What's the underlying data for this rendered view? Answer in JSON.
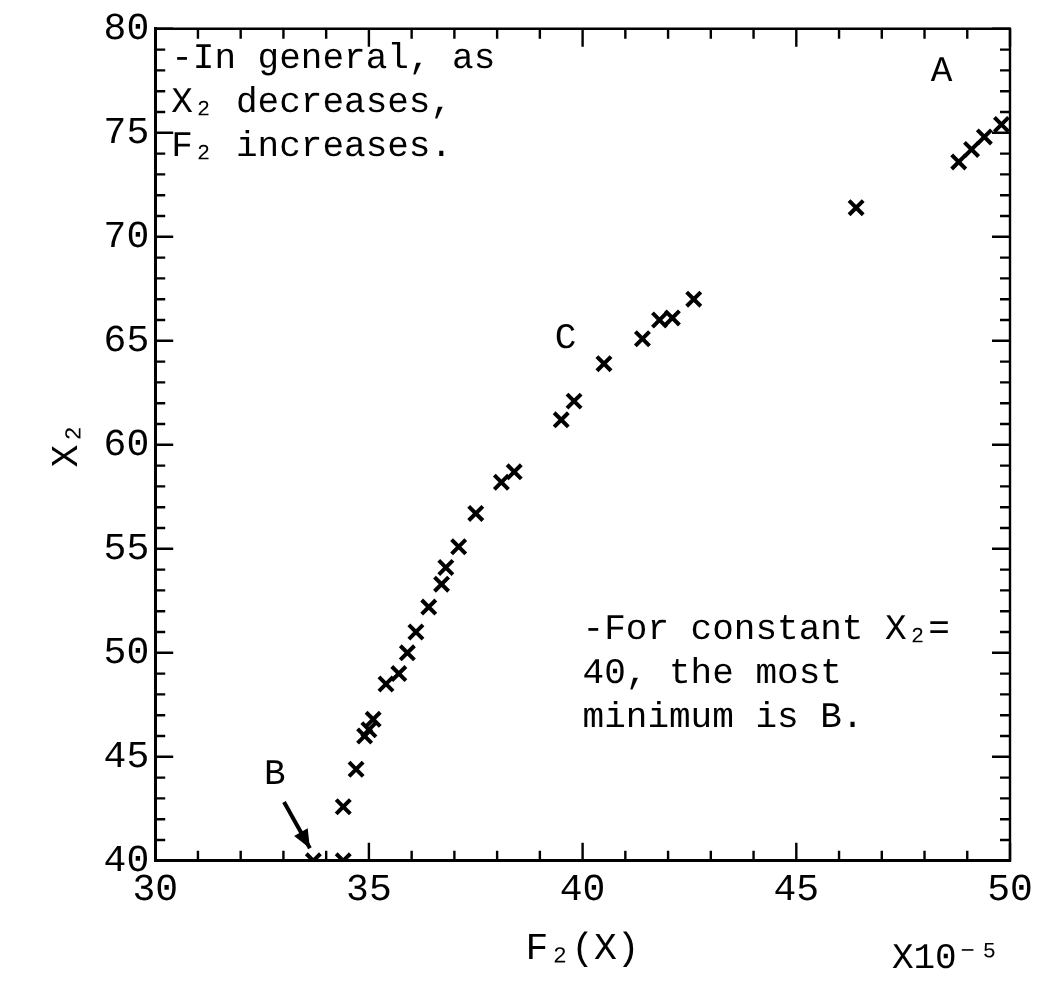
{
  "chart_data": {
    "type": "scatter",
    "xlabel": "F₂(X)",
    "ylabel": "X₂",
    "x": [
      33.7,
      34.4,
      34.4,
      34.7,
      34.9,
      35.0,
      35.1,
      35.4,
      35.7,
      35.9,
      36.1,
      36.4,
      36.7,
      36.8,
      37.1,
      37.5,
      38.1,
      38.4,
      39.5,
      39.8,
      40.5,
      41.4,
      41.8,
      42.1,
      42.6,
      46.4,
      48.8,
      49.1,
      49.4,
      49.8
    ],
    "series": [
      {
        "color": "#000000",
        "values": [
          40,
          40,
          42.6,
          44.4,
          46.0,
          46.3,
          46.8,
          48.5,
          49.0,
          50.0,
          51.0,
          52.2,
          53.3,
          54.1,
          55.1,
          56.7,
          58.2,
          58.7,
          61.2,
          62.1,
          63.9,
          65.1,
          66.0,
          66.1,
          67.0,
          71.4,
          73.6,
          74.2,
          74.8,
          75.4
        ]
      }
    ],
    "xlim": [
      30,
      50
    ],
    "ylim": [
      40,
      80
    ],
    "xticks": [
      30,
      {
        "value": 31,
        "label": null
      },
      {
        "value": 32,
        "label": null
      },
      {
        "value": 33,
        "label": null
      },
      {
        "value": 34,
        "label": null
      },
      35,
      {
        "value": 36,
        "label": null
      },
      {
        "value": 37,
        "label": null
      },
      {
        "value": 38,
        "label": null
      },
      {
        "value": 39,
        "label": null
      },
      40,
      {
        "value": 41,
        "label": null
      },
      {
        "value": 42,
        "label": null
      },
      {
        "value": 43,
        "label": null
      },
      {
        "value": 44,
        "label": null
      },
      45,
      {
        "value": 46,
        "label": null
      },
      {
        "value": 47,
        "label": null
      },
      {
        "value": 48,
        "label": null
      },
      {
        "value": 49,
        "label": null
      },
      50
    ],
    "yticks": [
      40,
      {
        "value": 41,
        "label": null
      },
      {
        "value": 42,
        "label": null
      },
      {
        "value": 43,
        "label": null
      },
      {
        "value": 44,
        "label": null
      },
      45,
      {
        "value": 46,
        "label": null
      },
      {
        "value": 47,
        "label": null
      },
      {
        "value": 48,
        "label": null
      },
      {
        "value": 49,
        "label": null
      },
      50,
      {
        "value": 51,
        "label": null
      },
      {
        "value": 52,
        "label": null
      },
      {
        "value": 53,
        "label": null
      },
      {
        "value": 54,
        "label": null
      },
      55,
      {
        "value": 56,
        "label": null
      },
      {
        "value": 57,
        "label": null
      },
      {
        "value": 58,
        "label": null
      },
      {
        "value": 59,
        "label": null
      },
      60,
      {
        "value": 61,
        "label": null
      },
      {
        "value": 62,
        "label": null
      },
      {
        "value": 63,
        "label": null
      },
      {
        "value": 64,
        "label": null
      },
      65,
      {
        "value": 66,
        "label": null
      },
      {
        "value": 67,
        "label": null
      },
      {
        "value": 68,
        "label": null
      },
      {
        "value": 69,
        "label": null
      },
      70,
      {
        "value": 71,
        "label": null
      },
      {
        "value": 72,
        "label": null
      },
      {
        "value": 73,
        "label": null
      },
      {
        "value": 74,
        "label": null
      },
      75,
      {
        "value": 76,
        "label": null
      },
      {
        "value": 77,
        "label": null
      },
      {
        "value": 78,
        "label": null
      },
      {
        "value": 79,
        "label": null
      },
      80
    ],
    "marker": "cross",
    "grid": false,
    "legend": false,
    "annotations": [
      "-In general, as\nX₂ decreases,\nF₂ increases.",
      "-For constant X₂=\n40, the most\nminimum is B.",
      "X10⁻⁵",
      "A",
      "C",
      "B"
    ]
  }
}
